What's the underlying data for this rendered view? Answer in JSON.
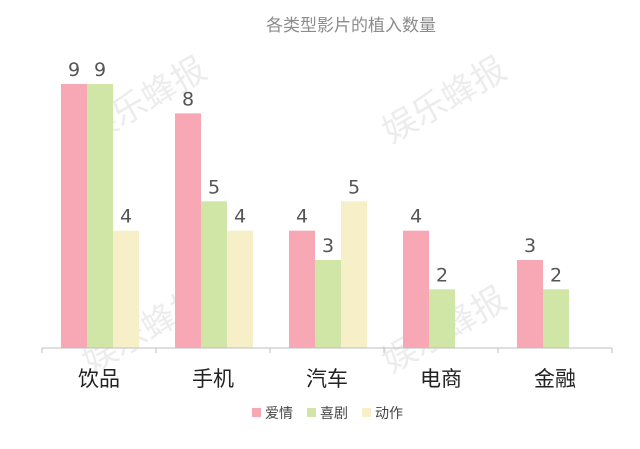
{
  "chart_data": {
    "type": "bar",
    "title": "各类型影片的植入数量",
    "categories": [
      "饮品",
      "手机",
      "汽车",
      "电商",
      "金融"
    ],
    "series": [
      {
        "name": "爱情",
        "color": "#f7a8b4",
        "values": [
          9,
          8,
          4,
          4,
          3
        ]
      },
      {
        "name": "喜剧",
        "color": "#cfe6a6",
        "values": [
          9,
          5,
          3,
          2,
          2
        ]
      },
      {
        "name": "动作",
        "color": "#f7efc8",
        "values": [
          4,
          4,
          5,
          null,
          null
        ]
      }
    ],
    "ylim": [
      0,
      9
    ],
    "xlabel": "",
    "ylabel": "",
    "grid": false,
    "legend_position": "bottom"
  },
  "watermark": "娱乐蜂报"
}
